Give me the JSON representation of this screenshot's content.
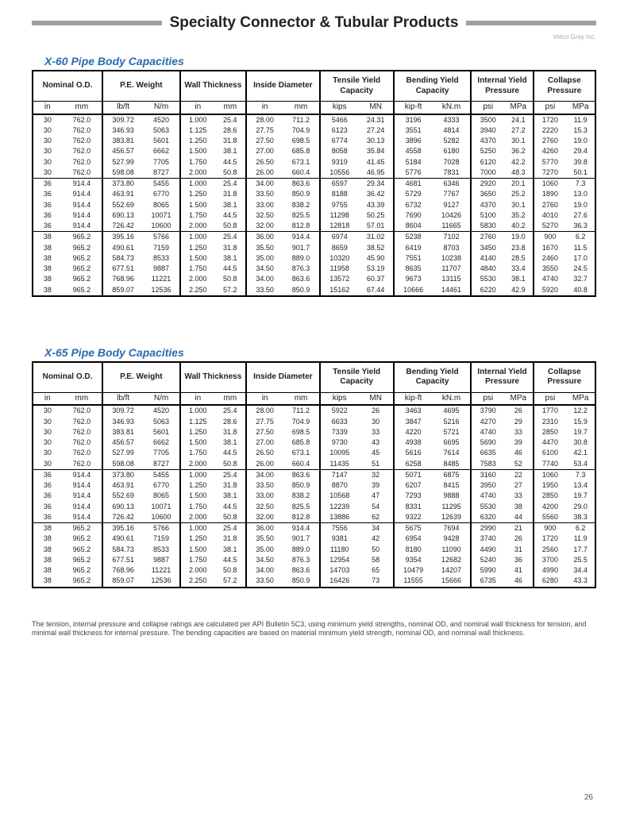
{
  "page": {
    "title": "Specialty Connector & Tubular Products",
    "brand": "Vetco Gray Inc.",
    "pageNumber": "26",
    "footnote": "The tension, internal pressure and collapse ratings are calculated per API Bulletin 5C3, using minimum yield strengths, nominal OD, and nominal wall thickness for tension, and minimal wall thickness for internal pressure. The bending capacities are based on material minimum yield strength, nominal OD, and nominal wall thickness."
  },
  "columns": {
    "groups": [
      "Nominal O.D.",
      "P.E. Weight",
      "Wall Thickness",
      "Inside Diameter",
      "Tensile Yield Capacity",
      "Bending Yield Capacity",
      "Internal Yield Pressure",
      "Collapse Pressure"
    ],
    "units": [
      "in",
      "mm",
      "lb/ft",
      "N/m",
      "in",
      "mm",
      "in",
      "mm",
      "kips",
      "MN",
      "kip-ft",
      "kN.m",
      "psi",
      "MPa",
      "psi",
      "MPa"
    ]
  },
  "tables": [
    {
      "title": "X-60 Pipe Body Capacities",
      "groups": [
        [
          [
            "30",
            "762.0",
            "309.72",
            "4520",
            "1.000",
            "25.4",
            "28.00",
            "711.2",
            "5466",
            "24.31",
            "3196",
            "4333",
            "3500",
            "24.1",
            "1720",
            "11.9"
          ],
          [
            "30",
            "762.0",
            "346.93",
            "5063",
            "1.125",
            "28.6",
            "27.75",
            "704.9",
            "6123",
            "27.24",
            "3551",
            "4814",
            "3940",
            "27.2",
            "2220",
            "15.3"
          ],
          [
            "30",
            "762.0",
            "383.81",
            "5601",
            "1.250",
            "31.8",
            "27.50",
            "698.5",
            "6774",
            "30.13",
            "3896",
            "5282",
            "4370",
            "30.1",
            "2760",
            "19.0"
          ],
          [
            "30",
            "762.0",
            "456.57",
            "6662",
            "1.500",
            "38.1",
            "27.00",
            "685.8",
            "8058",
            "35.84",
            "4558",
            "6180",
            "5250",
            "36.2",
            "4260",
            "29.4"
          ],
          [
            "30",
            "762.0",
            "527.99",
            "7705",
            "1.750",
            "44.5",
            "26.50",
            "673.1",
            "9319",
            "41.45",
            "5184",
            "7028",
            "6120",
            "42.2",
            "5770",
            "39.8"
          ],
          [
            "30",
            "762.0",
            "598.08",
            "8727",
            "2.000",
            "50.8",
            "26.00",
            "660.4",
            "10556",
            "46.95",
            "5776",
            "7831",
            "7000",
            "48.3",
            "7270",
            "50.1"
          ]
        ],
        [
          [
            "36",
            "914.4",
            "373.80",
            "5455",
            "1.000",
            "25.4",
            "34.00",
            "863.6",
            "6597",
            "29.34",
            "4681",
            "6346",
            "2920",
            "20.1",
            "1060",
            "7.3"
          ],
          [
            "36",
            "914.4",
            "463.91",
            "6770",
            "1.250",
            "31.8",
            "33.50",
            "850.9",
            "8188",
            "36.42",
            "5729",
            "7767",
            "3650",
            "25.2",
            "1890",
            "13.0"
          ],
          [
            "36",
            "914.4",
            "552.69",
            "8065",
            "1.500",
            "38.1",
            "33.00",
            "838.2",
            "9755",
            "43.39",
            "6732",
            "9127",
            "4370",
            "30.1",
            "2760",
            "19.0"
          ],
          [
            "36",
            "914.4",
            "690.13",
            "10071",
            "1.750",
            "44.5",
            "32.50",
            "825.5",
            "11298",
            "50.25",
            "7690",
            "10426",
            "5100",
            "35.2",
            "4010",
            "27.6"
          ],
          [
            "36",
            "914.4",
            "726.42",
            "10600",
            "2.000",
            "50.8",
            "32.00",
            "812.8",
            "12818",
            "57.01",
            "8604",
            "11665",
            "5830",
            "40.2",
            "5270",
            "36.3"
          ]
        ],
        [
          [
            "38",
            "965.2",
            "395.16",
            "5766",
            "1.000",
            "25.4",
            "36.00",
            "914.4",
            "6974",
            "31.02",
            "5238",
            "7102",
            "2760",
            "19.0",
            "900",
            "6.2"
          ],
          [
            "38",
            "965.2",
            "490.61",
            "7159",
            "1.250",
            "31.8",
            "35.50",
            "901.7",
            "8659",
            "38.52",
            "6419",
            "8703",
            "3450",
            "23.8",
            "1670",
            "11.5"
          ],
          [
            "38",
            "965.2",
            "584.73",
            "8533",
            "1.500",
            "38.1",
            "35.00",
            "889.0",
            "10320",
            "45.90",
            "7551",
            "10238",
            "4140",
            "28.5",
            "2460",
            "17.0"
          ],
          [
            "38",
            "965.2",
            "677.51",
            "9887",
            "1.750",
            "44.5",
            "34.50",
            "876.3",
            "11958",
            "53.19",
            "8635",
            "11707",
            "4840",
            "33.4",
            "3550",
            "24.5"
          ],
          [
            "38",
            "965.2",
            "768.96",
            "11221",
            "2.000",
            "50.8",
            "34.00",
            "863.6",
            "13572",
            "60.37",
            "9673",
            "13115",
            "5530",
            "38.1",
            "4740",
            "32.7"
          ],
          [
            "38",
            "965.2",
            "859.07",
            "12536",
            "2.250",
            "57.2",
            "33.50",
            "850.9",
            "15162",
            "67.44",
            "10666",
            "14461",
            "6220",
            "42.9",
            "5920",
            "40.8"
          ]
        ]
      ]
    },
    {
      "title": "X-65 Pipe Body Capacities",
      "groups": [
        [
          [
            "30",
            "762.0",
            "309.72",
            "4520",
            "1.000",
            "25.4",
            "28.00",
            "711.2",
            "5922",
            "26",
            "3463",
            "4695",
            "3790",
            "26",
            "1770",
            "12.2"
          ],
          [
            "30",
            "762.0",
            "346.93",
            "5063",
            "1.125",
            "28.6",
            "27.75",
            "704.9",
            "6633",
            "30",
            "3847",
            "5216",
            "4270",
            "29",
            "2310",
            "15.9"
          ],
          [
            "30",
            "762.0",
            "383.81",
            "5601",
            "1.250",
            "31.8",
            "27.50",
            "698.5",
            "7339",
            "33",
            "4220",
            "5721",
            "4740",
            "33",
            "2850",
            "19.7"
          ],
          [
            "30",
            "762.0",
            "456.57",
            "6662",
            "1.500",
            "38.1",
            "27.00",
            "685.8",
            "9730",
            "43",
            "4938",
            "6695",
            "5690",
            "39",
            "4470",
            "30.8"
          ],
          [
            "30",
            "762.0",
            "527.99",
            "7705",
            "1.750",
            "44.5",
            "26.50",
            "673.1",
            "10095",
            "45",
            "5616",
            "7614",
            "6635",
            "46",
            "6100",
            "42.1"
          ],
          [
            "30",
            "762.0",
            "598.08",
            "8727",
            "2.000",
            "50.8",
            "26.00",
            "660.4",
            "11435",
            "51",
            "6258",
            "8485",
            "7583",
            "52",
            "7740",
            "53.4"
          ]
        ],
        [
          [
            "36",
            "914.4",
            "373.80",
            "5455",
            "1.000",
            "25.4",
            "34.00",
            "863.6",
            "7147",
            "32",
            "5071",
            "6875",
            "3160",
            "22",
            "1060",
            "7.3"
          ],
          [
            "36",
            "914.4",
            "463.91",
            "6770",
            "1.250",
            "31.8",
            "33.50",
            "850.9",
            "8870",
            "39",
            "6207",
            "8415",
            "3950",
            "27",
            "1950",
            "13.4"
          ],
          [
            "36",
            "914.4",
            "552.69",
            "8065",
            "1.500",
            "38.1",
            "33.00",
            "838.2",
            "10568",
            "47",
            "7293",
            "9888",
            "4740",
            "33",
            "2850",
            "19.7"
          ],
          [
            "36",
            "914.4",
            "690.13",
            "10071",
            "1.750",
            "44.5",
            "32.50",
            "825.5",
            "12239",
            "54",
            "8331",
            "11295",
            "5530",
            "38",
            "4200",
            "29.0"
          ],
          [
            "36",
            "914.4",
            "726.42",
            "10600",
            "2.000",
            "50.8",
            "32.00",
            "812.8",
            "13886",
            "62",
            "9322",
            "12639",
            "6320",
            "44",
            "5560",
            "38.3"
          ]
        ],
        [
          [
            "38",
            "965.2",
            "395.16",
            "5766",
            "1.000",
            "25.4",
            "36.00",
            "914.4",
            "7556",
            "34",
            "5675",
            "7694",
            "2990",
            "21",
            "900",
            "6.2"
          ],
          [
            "38",
            "965.2",
            "490.61",
            "7159",
            "1.250",
            "31.8",
            "35.50",
            "901.7",
            "9381",
            "42",
            "6954",
            "9428",
            "3740",
            "26",
            "1720",
            "11.9"
          ],
          [
            "38",
            "965.2",
            "584.73",
            "8533",
            "1.500",
            "38.1",
            "35.00",
            "889.0",
            "11180",
            "50",
            "8180",
            "11090",
            "4490",
            "31",
            "2560",
            "17.7"
          ],
          [
            "38",
            "965.2",
            "677.51",
            "9887",
            "1.750",
            "44.5",
            "34.50",
            "876.3",
            "12954",
            "58",
            "9354",
            "12682",
            "5240",
            "36",
            "3700",
            "25.5"
          ],
          [
            "38",
            "965.2",
            "768.96",
            "11221",
            "2.000",
            "50.8",
            "34.00",
            "863.6",
            "14703",
            "65",
            "10479",
            "14207",
            "5990",
            "41",
            "4990",
            "34.4"
          ],
          [
            "38",
            "965.2",
            "859.07",
            "12536",
            "2.250",
            "57.2",
            "33.50",
            "850.9",
            "16426",
            "73",
            "11555",
            "15666",
            "6735",
            "46",
            "6280",
            "43.3"
          ]
        ]
      ]
    }
  ]
}
